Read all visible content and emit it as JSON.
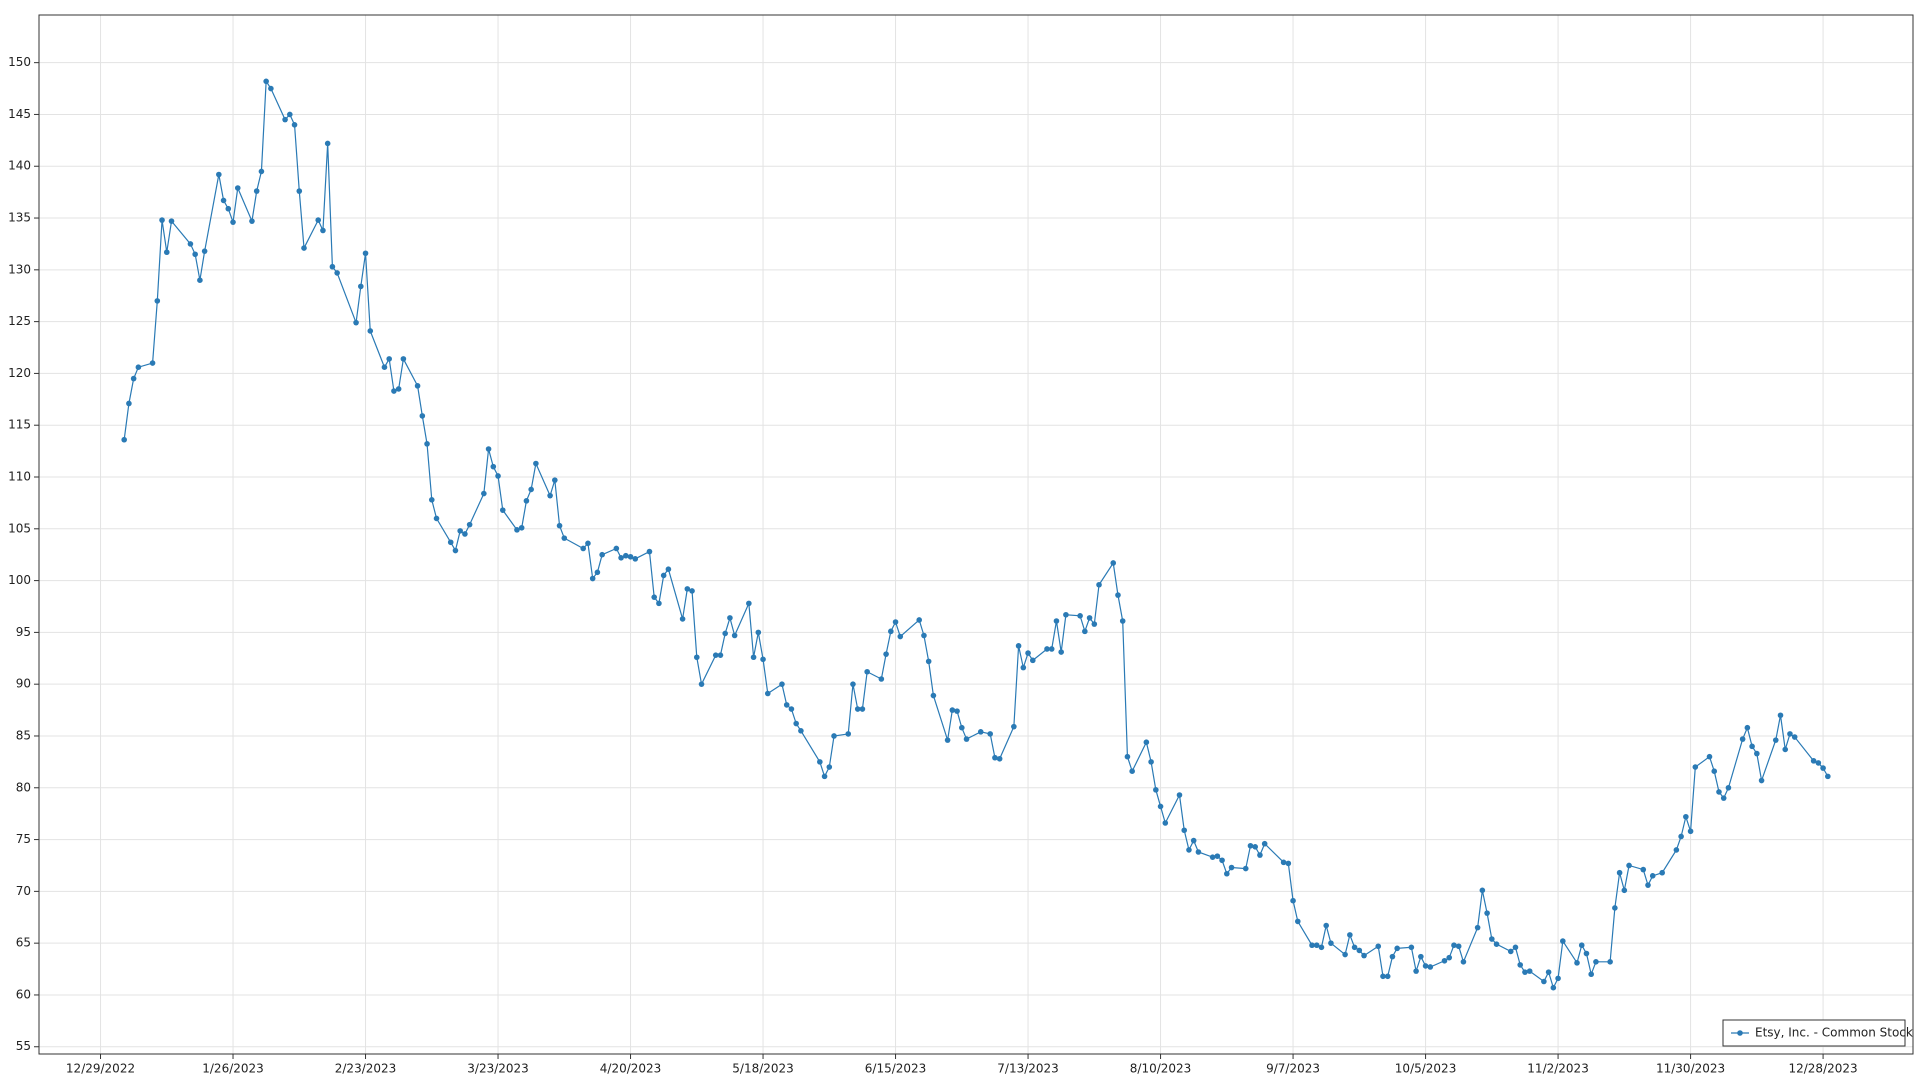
{
  "chart_data": {
    "type": "line",
    "x": [
      "1/3/2023",
      "1/4/2023",
      "1/5/2023",
      "1/6/2023",
      "1/9/2023",
      "1/10/2023",
      "1/11/2023",
      "1/12/2023",
      "1/13/2023",
      "1/17/2023",
      "1/18/2023",
      "1/19/2023",
      "1/20/2023",
      "1/23/2023",
      "1/24/2023",
      "1/25/2023",
      "1/26/2023",
      "1/27/2023",
      "1/30/2023",
      "1/31/2023",
      "2/1/2023",
      "2/2/2023",
      "2/3/2023",
      "2/6/2023",
      "2/7/2023",
      "2/8/2023",
      "2/9/2023",
      "2/10/2023",
      "2/13/2023",
      "2/14/2023",
      "2/15/2023",
      "2/16/2023",
      "2/17/2023",
      "2/21/2023",
      "2/22/2023",
      "2/23/2023",
      "2/24/2023",
      "2/27/2023",
      "2/28/2023",
      "3/1/2023",
      "3/2/2023",
      "3/3/2023",
      "3/6/2023",
      "3/7/2023",
      "3/8/2023",
      "3/9/2023",
      "3/10/2023",
      "3/13/2023",
      "3/14/2023",
      "3/15/2023",
      "3/16/2023",
      "3/17/2023",
      "3/20/2023",
      "3/21/2023",
      "3/22/2023",
      "3/23/2023",
      "3/24/2023",
      "3/27/2023",
      "3/28/2023",
      "3/29/2023",
      "3/30/2023",
      "3/31/2023",
      "4/3/2023",
      "4/4/2023",
      "4/5/2023",
      "4/6/2023",
      "4/10/2023",
      "4/11/2023",
      "4/12/2023",
      "4/13/2023",
      "4/14/2023",
      "4/17/2023",
      "4/18/2023",
      "4/19/2023",
      "4/20/2023",
      "4/21/2023",
      "4/24/2023",
      "4/25/2023",
      "4/26/2023",
      "4/27/2023",
      "4/28/2023",
      "5/1/2023",
      "5/2/2023",
      "5/3/2023",
      "5/4/2023",
      "5/5/2023",
      "5/8/2023",
      "5/9/2023",
      "5/10/2023",
      "5/11/2023",
      "5/12/2023",
      "5/15/2023",
      "5/16/2023",
      "5/17/2023",
      "5/18/2023",
      "5/19/2023",
      "5/22/2023",
      "5/23/2023",
      "5/24/2023",
      "5/25/2023",
      "5/26/2023",
      "5/30/2023",
      "5/31/2023",
      "6/1/2023",
      "6/2/2023",
      "6/5/2023",
      "6/6/2023",
      "6/7/2023",
      "6/8/2023",
      "6/9/2023",
      "6/12/2023",
      "6/13/2023",
      "6/14/2023",
      "6/15/2023",
      "6/16/2023",
      "6/20/2023",
      "6/21/2023",
      "6/22/2023",
      "6/23/2023",
      "6/26/2023",
      "6/27/2023",
      "6/28/2023",
      "6/29/2023",
      "6/30/2023",
      "7/3/2023",
      "7/5/2023",
      "7/6/2023",
      "7/7/2023",
      "7/10/2023",
      "7/11/2023",
      "7/12/2023",
      "7/13/2023",
      "7/14/2023",
      "7/17/2023",
      "7/18/2023",
      "7/19/2023",
      "7/20/2023",
      "7/21/2023",
      "7/24/2023",
      "7/25/2023",
      "7/26/2023",
      "7/27/2023",
      "7/28/2023",
      "7/31/2023",
      "8/1/2023",
      "8/2/2023",
      "8/3/2023",
      "8/4/2023",
      "8/7/2023",
      "8/8/2023",
      "8/9/2023",
      "8/10/2023",
      "8/11/2023",
      "8/14/2023",
      "8/15/2023",
      "8/16/2023",
      "8/17/2023",
      "8/18/2023",
      "8/21/2023",
      "8/22/2023",
      "8/23/2023",
      "8/24/2023",
      "8/25/2023",
      "8/28/2023",
      "8/29/2023",
      "8/30/2023",
      "8/31/2023",
      "9/1/2023",
      "9/5/2023",
      "9/6/2023",
      "9/7/2023",
      "9/8/2023",
      "9/11/2023",
      "9/12/2023",
      "9/13/2023",
      "9/14/2023",
      "9/15/2023",
      "9/18/2023",
      "9/19/2023",
      "9/20/2023",
      "9/21/2023",
      "9/22/2023",
      "9/25/2023",
      "9/26/2023",
      "9/27/2023",
      "9/28/2023",
      "9/29/2023",
      "10/2/2023",
      "10/3/2023",
      "10/4/2023",
      "10/5/2023",
      "10/6/2023",
      "10/9/2023",
      "10/10/2023",
      "10/11/2023",
      "10/12/2023",
      "10/13/2023",
      "10/16/2023",
      "10/17/2023",
      "10/18/2023",
      "10/19/2023",
      "10/20/2023",
      "10/23/2023",
      "10/24/2023",
      "10/25/2023",
      "10/26/2023",
      "10/27/2023",
      "10/30/2023",
      "10/31/2023",
      "11/1/2023",
      "11/2/2023",
      "11/3/2023",
      "11/6/2023",
      "11/7/2023",
      "11/8/2023",
      "11/9/2023",
      "11/10/2023",
      "11/13/2023",
      "11/14/2023",
      "11/15/2023",
      "11/16/2023",
      "11/17/2023",
      "11/20/2023",
      "11/21/2023",
      "11/22/2023",
      "11/24/2023",
      "11/27/2023",
      "11/28/2023",
      "11/29/2023",
      "11/30/2023",
      "12/1/2023",
      "12/4/2023",
      "12/5/2023",
      "12/6/2023",
      "12/7/2023",
      "12/8/2023",
      "12/11/2023",
      "12/12/2023",
      "12/13/2023",
      "12/14/2023",
      "12/15/2023",
      "12/18/2023",
      "12/19/2023",
      "12/20/2023",
      "12/21/2023",
      "12/22/2023",
      "12/26/2023",
      "12/27/2023",
      "12/28/2023",
      "12/29/2023"
    ],
    "series": [
      {
        "name": "Etsy, Inc. - Common Stock",
        "color": "#2a7ab5",
        "values": [
          113.6,
          117.1,
          119.5,
          120.6,
          121.0,
          127.0,
          134.8,
          131.7,
          134.7,
          132.5,
          131.5,
          129.0,
          131.8,
          139.2,
          136.7,
          135.9,
          134.6,
          137.9,
          134.7,
          137.6,
          139.5,
          148.2,
          147.5,
          144.5,
          145.0,
          144.0,
          137.6,
          132.1,
          134.8,
          133.8,
          142.2,
          130.3,
          129.7,
          124.9,
          128.4,
          131.6,
          124.1,
          120.6,
          121.4,
          118.3,
          118.5,
          121.4,
          118.8,
          115.9,
          113.2,
          107.8,
          106.0,
          103.7,
          102.9,
          104.8,
          104.5,
          105.4,
          108.4,
          112.7,
          111.0,
          110.1,
          106.8,
          104.9,
          105.1,
          107.7,
          108.8,
          111.3,
          108.2,
          109.7,
          105.3,
          104.1,
          103.1,
          103.6,
          100.2,
          100.8,
          102.5,
          103.1,
          102.2,
          102.4,
          102.3,
          102.1,
          102.8,
          98.4,
          97.8,
          100.5,
          101.1,
          96.3,
          99.2,
          99.0,
          92.6,
          90.0,
          92.8,
          92.8,
          94.9,
          96.4,
          94.7,
          97.8,
          92.6,
          95.0,
          92.4,
          89.1,
          90.0,
          88.0,
          87.6,
          86.2,
          85.5,
          82.5,
          81.1,
          82.0,
          85.0,
          85.2,
          90.0,
          87.6,
          87.6,
          91.2,
          90.5,
          92.9,
          95.1,
          96.0,
          94.6,
          96.2,
          94.7,
          92.2,
          88.9,
          84.6,
          87.5,
          87.4,
          85.8,
          84.7,
          85.4,
          85.2,
          82.9,
          82.8,
          85.9,
          93.7,
          91.6,
          93.0,
          92.3,
          93.4,
          93.4,
          96.1,
          93.1,
          96.7,
          96.6,
          95.1,
          96.4,
          95.8,
          99.6,
          101.7,
          98.6,
          96.1,
          83.0,
          81.6,
          84.4,
          82.5,
          79.8,
          78.2,
          76.6,
          79.3,
          75.9,
          74.0,
          74.9,
          73.8,
          73.3,
          73.4,
          73.0,
          71.7,
          72.3,
          72.2,
          74.4,
          74.3,
          73.5,
          74.6,
          72.8,
          72.7,
          69.1,
          67.1,
          64.8,
          64.8,
          64.6,
          66.7,
          65.0,
          63.9,
          65.8,
          64.6,
          64.3,
          63.8,
          64.7,
          61.8,
          61.8,
          63.7,
          64.5,
          64.6,
          62.3,
          63.7,
          62.8,
          62.7,
          63.3,
          63.6,
          64.8,
          64.7,
          63.2,
          66.5,
          70.1,
          67.9,
          65.4,
          64.9,
          64.2,
          64.6,
          62.9,
          62.2,
          62.3,
          61.3,
          62.2,
          60.7,
          61.6,
          65.2,
          63.1,
          64.8,
          64.0,
          62.0,
          63.2,
          63.2,
          68.4,
          71.8,
          70.1,
          72.5,
          72.1,
          70.6,
          71.5,
          71.8,
          74.0,
          75.3,
          77.2,
          75.8,
          82.0,
          83.0,
          81.6,
          79.6,
          79.0,
          80.0,
          84.7,
          85.8,
          84.0,
          83.3,
          80.7,
          84.6,
          87.0,
          83.7,
          85.2,
          84.9,
          82.6,
          82.4,
          81.9,
          81.1
        ]
      }
    ],
    "xlim": [
      "12/16/2022",
      "1/16/2024"
    ],
    "xticks": [
      "12/29/2022",
      "1/26/2023",
      "2/23/2023",
      "3/23/2023",
      "4/20/2023",
      "5/18/2023",
      "6/15/2023",
      "7/13/2023",
      "8/10/2023",
      "9/7/2023",
      "10/5/2023",
      "11/2/2023",
      "11/30/2023",
      "12/28/2023"
    ],
    "ylim": [
      54.3,
      154.6
    ],
    "yticks": [
      55,
      60,
      65,
      70,
      75,
      80,
      85,
      90,
      95,
      100,
      105,
      110,
      115,
      120,
      125,
      130,
      135,
      140,
      145,
      150
    ],
    "grid": true,
    "legend": "lower right"
  }
}
